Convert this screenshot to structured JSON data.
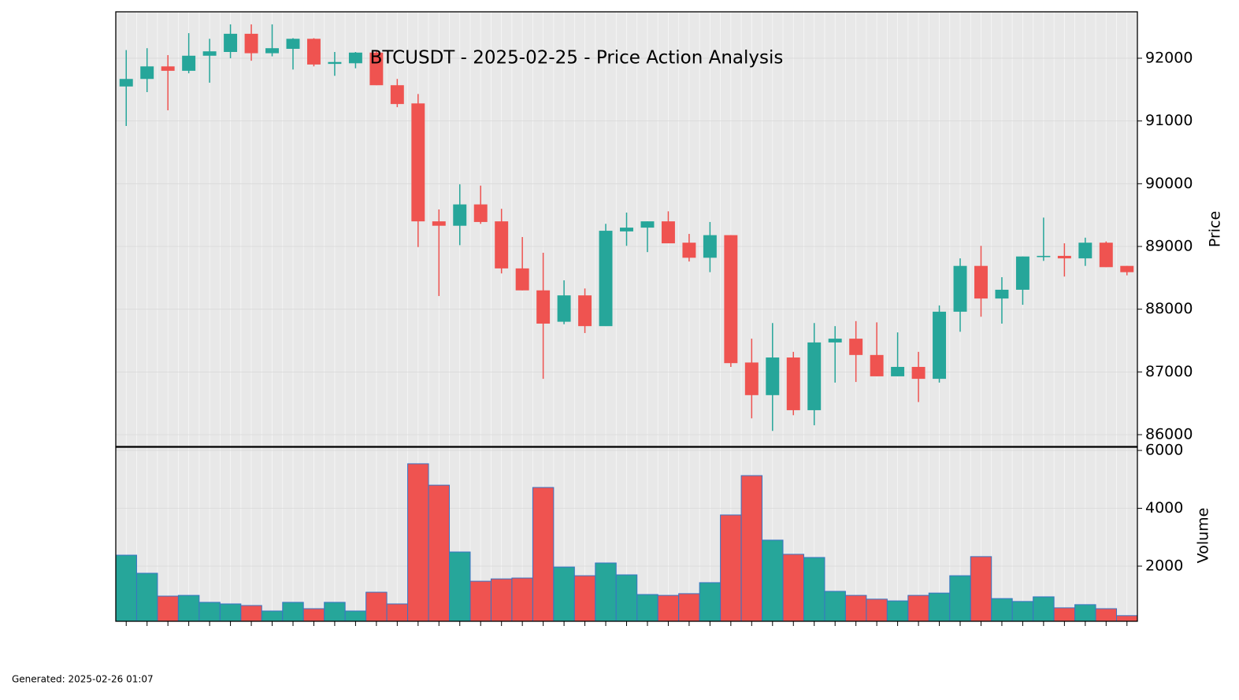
{
  "chart_data": [
    {
      "type": "candlestick",
      "title": "BTCUSDT - 2025-02-25 - Price Action Analysis",
      "ylabel": "Price",
      "up_color": "#26a69a",
      "down_color": "#ef5350",
      "open": [
        91550,
        91670,
        91870,
        91800,
        92040,
        92100,
        92390,
        92080,
        92150,
        92310,
        91910,
        91920,
        92090,
        91570,
        91280,
        89400,
        89330,
        89670,
        89400,
        88650,
        88300,
        87800,
        88220,
        87730,
        89240,
        89300,
        89400,
        89060,
        88820,
        89180,
        87150,
        86630,
        87230,
        86390,
        87470,
        87530,
        87270,
        86930,
        87080,
        86890,
        87960,
        88690,
        88170,
        88310,
        88830,
        88850,
        88810,
        89060,
        88690
      ],
      "high": [
        92130,
        92160,
        92050,
        92400,
        92310,
        92540,
        92540,
        92540,
        92320,
        92320,
        92100,
        92100,
        92130,
        91670,
        91430,
        89590,
        89990,
        89970,
        89600,
        89150,
        88900,
        88460,
        88330,
        89360,
        89540,
        89400,
        89560,
        89200,
        89390,
        89180,
        87530,
        87780,
        87320,
        87780,
        87730,
        87810,
        87790,
        87630,
        87320,
        88060,
        88810,
        89010,
        88510,
        88840,
        89460,
        89050,
        89140,
        89080,
        88690
      ],
      "low": [
        90920,
        91460,
        91170,
        91760,
        91610,
        92000,
        91960,
        92030,
        91820,
        91870,
        91720,
        91840,
        91570,
        91220,
        88990,
        88210,
        89020,
        89360,
        88570,
        88300,
        86890,
        87760,
        87620,
        87730,
        89010,
        88910,
        89050,
        88760,
        88590,
        87080,
        86260,
        86060,
        86310,
        86150,
        86830,
        86840,
        86930,
        86930,
        86520,
        86830,
        87640,
        87880,
        87770,
        88070,
        88770,
        88520,
        88690,
        88670,
        88540
      ],
      "close": [
        91670,
        91870,
        91800,
        92040,
        92110,
        92390,
        92080,
        92160,
        92310,
        91900,
        91940,
        92090,
        91570,
        91270,
        89400,
        89330,
        89670,
        89390,
        88650,
        88300,
        87770,
        88220,
        87730,
        89250,
        89300,
        89400,
        89050,
        88820,
        89180,
        87140,
        86630,
        87230,
        86390,
        87470,
        87530,
        87270,
        86930,
        87080,
        86890,
        87960,
        88690,
        88170,
        88310,
        88840,
        88850,
        88810,
        89060,
        88670,
        88590
      ],
      "ylim": [
        85812,
        92740
      ],
      "yticks": [
        86000,
        87000,
        88000,
        89000,
        90000,
        91000,
        92000
      ],
      "grid": true
    },
    {
      "type": "bar",
      "ylabel": "Volume",
      "edge_color": "#3a75c4",
      "values": [
        2380,
        1755,
        965,
        990,
        750,
        695,
        640,
        450,
        750,
        530,
        750,
        450,
        1100,
        695,
        5540,
        4800,
        2490,
        1480,
        1560,
        1590,
        4720,
        1970,
        1670,
        2110,
        1700,
        1020,
        990,
        1050,
        1430,
        3770,
        5130,
        2900,
        2410,
        2300,
        1130,
        990,
        860,
        800,
        990,
        1070,
        1670,
        2330,
        880,
        780,
        940,
        560,
        670,
        530,
        290
      ],
      "ylim": [
        95,
        6110
      ],
      "yticks": [
        2000,
        4000,
        6000
      ],
      "grid": true
    }
  ],
  "footer": "Generated: 2025-02-26 01:07"
}
